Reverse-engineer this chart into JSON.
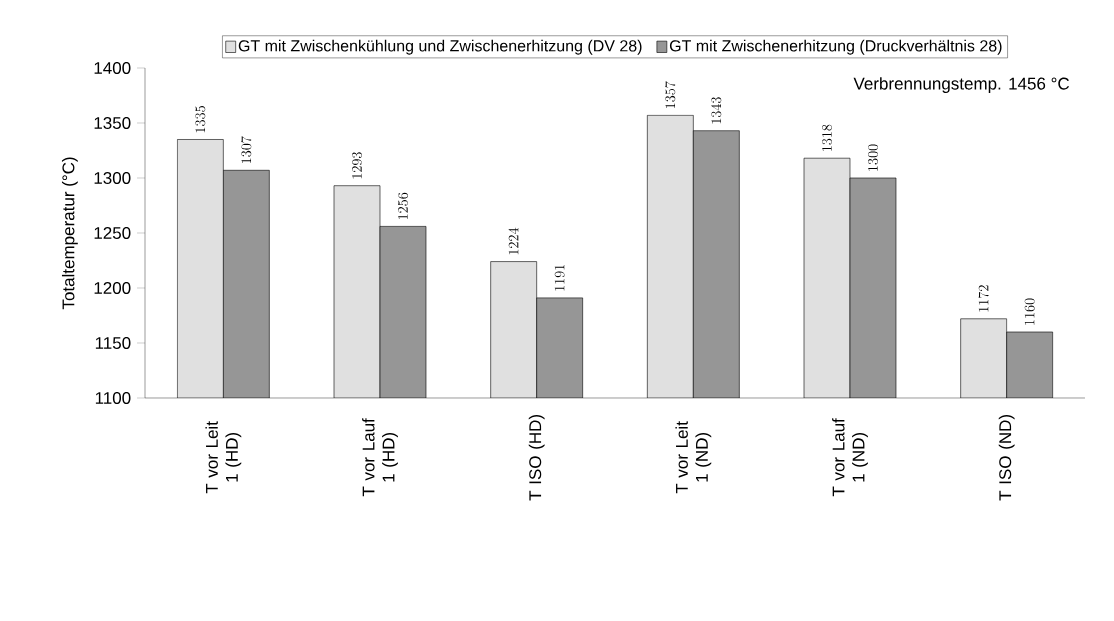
{
  "chart_data": {
    "type": "bar",
    "ylabel": "Totaltemperatur (°C)",
    "categories": [
      "T vor Leit 1 (HD)",
      "T vor Lauf 1 (HD)",
      "T ISO (HD)",
      "T vor Leit 1 (ND)",
      "T vor Lauf 1 (ND)",
      "T ISO (ND)"
    ],
    "series": [
      {
        "name": "GT mit Zwischenkühlung und Zwischenerhitzung (DV 28)",
        "color": "#e0e0e0",
        "values": [
          1335,
          1293,
          1224,
          1357,
          1318,
          1172
        ]
      },
      {
        "name": "GT mit Zwischenerhitzung (Druckverhältnis 28)",
        "color": "#969696",
        "values": [
          1307,
          1256,
          1191,
          1343,
          1300,
          1160
        ]
      }
    ],
    "ylim": [
      1100,
      1400
    ],
    "yticks": [
      1100,
      1150,
      1200,
      1250,
      1300,
      1350,
      1400
    ],
    "data_labels": true,
    "legend": "top",
    "grid": false,
    "annotations": [
      "Verbrennungstemp. 1456 °C"
    ]
  }
}
